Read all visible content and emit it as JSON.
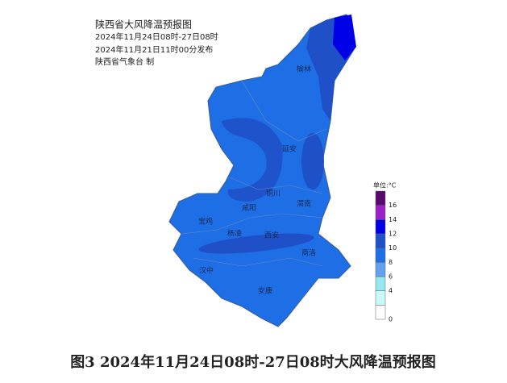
{
  "header": {
    "title": "陕西省大风降温预报图",
    "period": "2024年11月24日08时-27日08时",
    "issued": "2024年11月21日11时00分发布",
    "issuer": "陕西省气象台 制"
  },
  "cities": [
    "榆林",
    "延安",
    "铜川",
    "渭南",
    "宝鸡",
    "咸阳",
    "杨凌",
    "西安",
    "商洛",
    "汉中",
    "安康"
  ],
  "legend": {
    "unit": "单位:°C",
    "ticks": [
      0,
      4,
      6,
      8,
      10,
      12,
      14,
      16
    ],
    "colors": [
      "#ffffff",
      "#c8fafa",
      "#96e6f0",
      "#64a0f0",
      "#1e6ee6",
      "#1f50c8",
      "#0000e6",
      "#a020c8",
      "#5a0a6e"
    ]
  },
  "caption": "图3 2024年11月24日08时-27日08时大风降温预报图"
}
